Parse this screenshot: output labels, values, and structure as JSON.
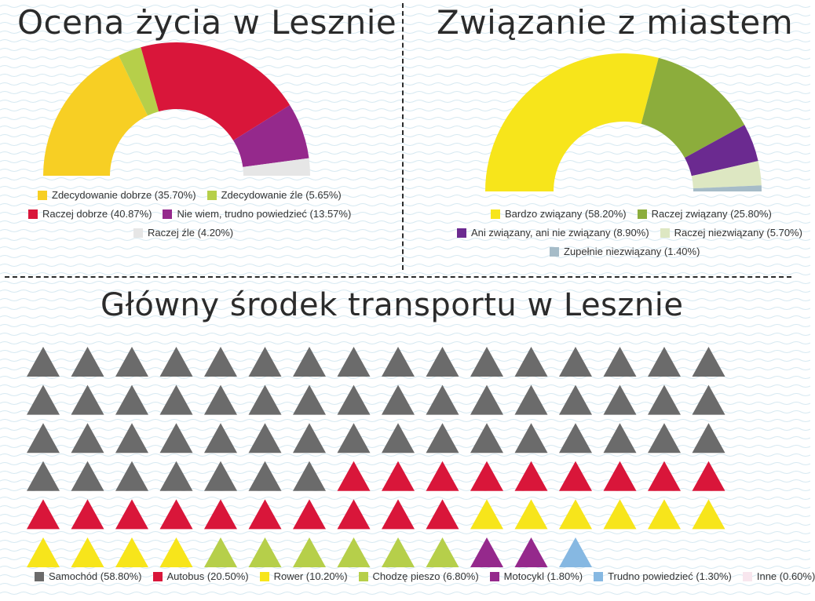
{
  "panels": {
    "left_title": "Ocena życia w Lesznie",
    "right_title": "Związanie z miastem",
    "bottom_title": "Główny środek transportu w Lesznie"
  },
  "chart_data": [
    {
      "type": "pie",
      "title": "Ocena życia w Lesznie",
      "style": "semi-donut",
      "slices": [
        {
          "label": "Zdecydowanie dobrze (35.70%)",
          "value": 35.7,
          "color": "#f7cf24"
        },
        {
          "label": "Zdecydowanie źle (5.65%)",
          "value": 5.65,
          "color": "#b6cf4a"
        },
        {
          "label": "Raczej dobrze (40.87%)",
          "value": 40.87,
          "color": "#d9163a"
        },
        {
          "label": "Nie wiem, trudno powiedzieć (13.57%)",
          "value": 13.57,
          "color": "#95298c"
        },
        {
          "label": "Raczej źle (4.20%)",
          "value": 4.2,
          "color": "#e6e6e6"
        }
      ],
      "arc_order": [
        0,
        1,
        2,
        3,
        4
      ],
      "legend_rows": [
        [
          0,
          1
        ],
        [
          2,
          3
        ],
        [
          4
        ]
      ]
    },
    {
      "type": "pie",
      "title": "Związanie z miastem",
      "style": "semi-donut",
      "slices": [
        {
          "label": "Bardzo związany (58.20%)",
          "value": 58.2,
          "color": "#f7e51b"
        },
        {
          "label": "Raczej związany (25.80%)",
          "value": 25.8,
          "color": "#8cad3c"
        },
        {
          "label": "Ani związany, ani nie związany (8.90%)",
          "value": 8.9,
          "color": "#6b2a90"
        },
        {
          "label": "Raczej niezwiązany (5.70%)",
          "value": 5.7,
          "color": "#dde7c2"
        },
        {
          "label": "Zupełnie niezwiązany (1.40%)",
          "value": 1.4,
          "color": "#a6bcc8"
        }
      ],
      "arc_order": [
        0,
        1,
        2,
        3,
        4
      ],
      "legend_rows": [
        [
          0,
          1
        ],
        [
          2,
          3
        ],
        [
          4
        ]
      ]
    },
    {
      "type": "waffle",
      "title": "Główny środek transportu w Lesznie",
      "icon": "triangle-icon",
      "columns": 16,
      "categories": [
        {
          "label": "Samochód (58.80%)",
          "value": 58.8,
          "icons": 55,
          "color": "#6b6b6b"
        },
        {
          "label": "Autobus (20.50%)",
          "value": 20.5,
          "icons": 19,
          "color": "#d9163a"
        },
        {
          "label": "Rower (10.20%)",
          "value": 10.2,
          "icons": 10,
          "color": "#f7e51b"
        },
        {
          "label": "Chodzę pieszo (6.80%)",
          "value": 6.8,
          "icons": 6,
          "color": "#b6cf4a"
        },
        {
          "label": "Motocykl (1.80%)",
          "value": 1.8,
          "icons": 2,
          "color": "#95298c"
        },
        {
          "label": "Trudno powiedzieć (1.30%)",
          "value": 1.3,
          "icons": 1,
          "color": "#86b8e2"
        },
        {
          "label": "Inne (0.60%)",
          "value": 0.6,
          "icons": 0,
          "color": "#f8e6ee"
        }
      ]
    }
  ]
}
